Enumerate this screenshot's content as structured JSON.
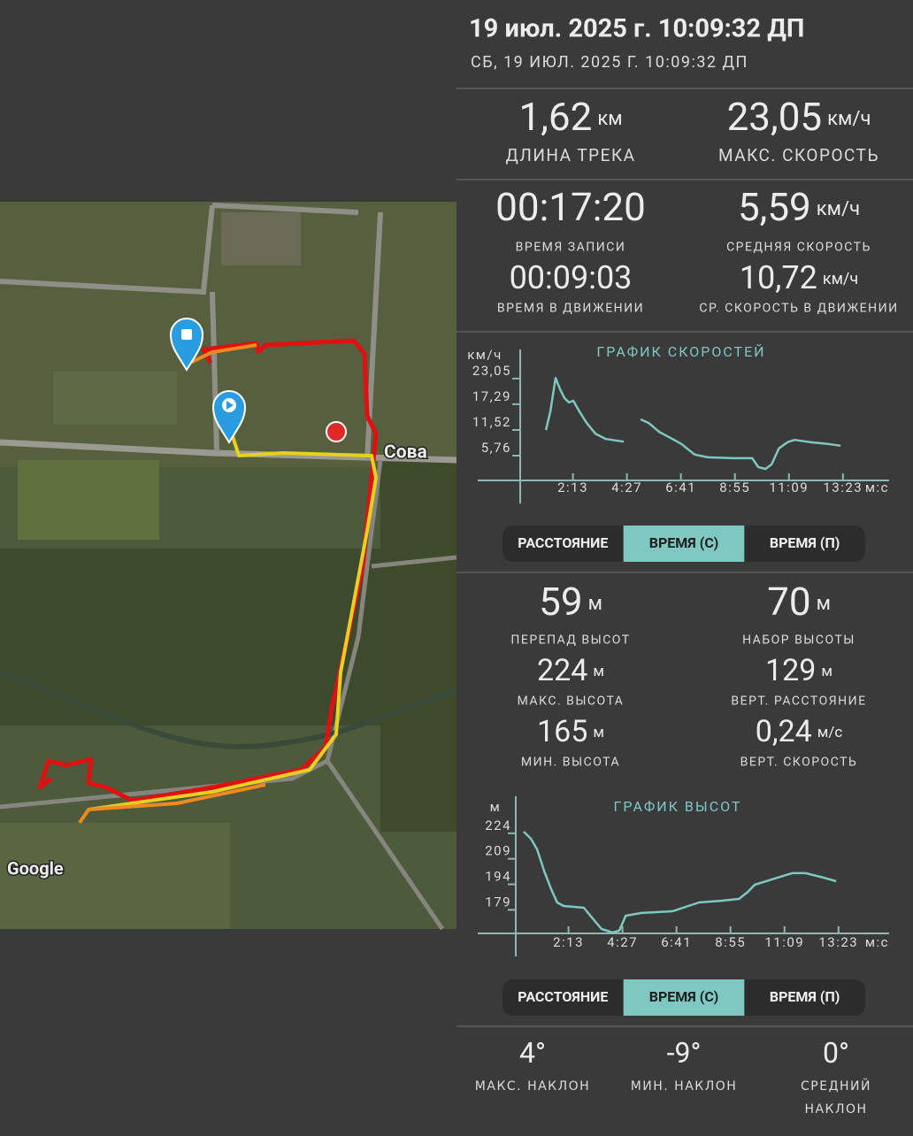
{
  "header": {
    "title": "19 июл. 2025 г. 10:09:32 ДП",
    "subtitle": "СБ, 19 ИЮЛ. 2025 Г. 10:09:32 ДП"
  },
  "map": {
    "place_label": "Сова",
    "attribution": "Google"
  },
  "summary": [
    {
      "value": "1,62",
      "unit": "км",
      "label": "ДЛИНА ТРЕКА"
    },
    {
      "value": "23,05",
      "unit": "км/ч",
      "label": "МАКС. СКОРОСТЬ"
    },
    {
      "value": "00:17:20",
      "label": "ВРЕМЯ ЗАПИСИ"
    },
    {
      "value": "5,59",
      "unit": "км/ч",
      "label": "СРЕДНЯЯ СКОРОСТЬ"
    },
    {
      "value": "00:09:03",
      "label": "ВРЕМЯ В ДВИЖЕНИИ"
    },
    {
      "value": "10,72",
      "unit": "км/ч",
      "label": "СР. СКОРОСТЬ В ДВИЖЕНИИ"
    }
  ],
  "elevation_stats": [
    {
      "value": "59",
      "unit": "м",
      "label": "ПЕРЕПАД ВЫСОТ"
    },
    {
      "value": "70",
      "unit": "м",
      "label": "НАБОР ВЫСОТЫ"
    },
    {
      "value": "224",
      "unit": "м",
      "label": "МАКС. ВЫСОТА"
    },
    {
      "value": "129",
      "unit": "м",
      "label": "ВЕРТ. РАССТОЯНИЕ"
    },
    {
      "value": "165",
      "unit": "м",
      "label": "МИН. ВЫСОТА"
    },
    {
      "value": "0,24",
      "unit": "м/с",
      "label": "ВЕРТ. СКОРОСТЬ"
    }
  ],
  "slope_stats": [
    {
      "value": "4°",
      "label": "МАКС. НАКЛОН"
    },
    {
      "value": "-9°",
      "label": "МИН. НАКЛОН"
    },
    {
      "value": "0°",
      "label": "СРЕДНИЙ НАКЛОН"
    }
  ],
  "tabs": {
    "speed": {
      "options": [
        "РАССТОЯНИЕ",
        "ВРЕМЯ (С)",
        "ВРЕМЯ (П)"
      ],
      "selected": 1
    },
    "elevation": {
      "options": [
        "РАССТОЯНИЕ",
        "ВРЕМЯ (С)",
        "ВРЕМЯ (П)"
      ],
      "selected": 1
    }
  },
  "chart_data": [
    {
      "type": "line",
      "title": "ГРАФИК СКОРОСТЕЙ",
      "y_label": "км/ч",
      "x_label": "м:с",
      "color": "#7fc8c2",
      "x": [
        66,
        77,
        90,
        101,
        112,
        123,
        134,
        149,
        167,
        189,
        215,
        259,
        280,
        301,
        321,
        347,
        380,
        402,
        435,
        468,
        534,
        578,
        593,
        611,
        626,
        644,
        666,
        683,
        721,
        765,
        797
      ],
      "values": [
        9.9,
        14.1,
        21.6,
        19.1,
        17.1,
        16.1,
        16.5,
        14.1,
        11.5,
        9.1,
        7.9,
        7.3,
        null,
        12.3,
        11.5,
        9.5,
        7.9,
        6.8,
        4.4,
        3.8,
        3.6,
        3.6,
        1.6,
        1.2,
        2.2,
        5.8,
        7.2,
        7.7,
        7.2,
        6.8,
        6.4
      ],
      "xlim": [
        0,
        900
      ],
      "ylim": [
        0,
        27
      ],
      "xticks": [
        {
          "value": 133,
          "label": "2:13"
        },
        {
          "value": 267,
          "label": "4:27"
        },
        {
          "value": 401,
          "label": "6:41"
        },
        {
          "value": 535,
          "label": "8:55"
        },
        {
          "value": 669,
          "label": "11:09"
        },
        {
          "value": 803,
          "label": "13:23"
        }
      ],
      "yticks": [
        {
          "value": 5.76,
          "label": "5,76"
        },
        {
          "value": 11.52,
          "label": "11,52"
        },
        {
          "value": 17.29,
          "label": "17,29"
        },
        {
          "value": 23.05,
          "label": "23,05"
        }
      ]
    },
    {
      "type": "line",
      "title": "ГРАФИК ВЫСОТ",
      "y_label": "м",
      "x_label": "м:с",
      "color": "#7fc8c2",
      "x": [
        22,
        40,
        55,
        73,
        90,
        105,
        121,
        171,
        193,
        215,
        242,
        259,
        275,
        314,
        391,
        424,
        457,
        512,
        556,
        578,
        595,
        644,
        688,
        721,
        765,
        797
      ],
      "values": [
        220.8,
        216.6,
        210.4,
        197.4,
        187,
        179.2,
        177.1,
        176.1,
        169.8,
        163.6,
        161.5,
        162.6,
        171.4,
        173,
        174,
        176.6,
        179.2,
        180.2,
        181.3,
        185.4,
        189.6,
        193.2,
        196.4,
        196.4,
        193.8,
        191.7
      ],
      "xlim": [
        0,
        900
      ],
      "ylim": [
        161,
        239
      ],
      "xticks": [
        {
          "value": 133,
          "label": "2:13"
        },
        {
          "value": 267,
          "label": "4:27"
        },
        {
          "value": 401,
          "label": "6:41"
        },
        {
          "value": 535,
          "label": "8:55"
        },
        {
          "value": 669,
          "label": "11:09"
        },
        {
          "value": 803,
          "label": "13:23"
        }
      ],
      "yticks": [
        179,
        194,
        209,
        224
      ]
    }
  ]
}
